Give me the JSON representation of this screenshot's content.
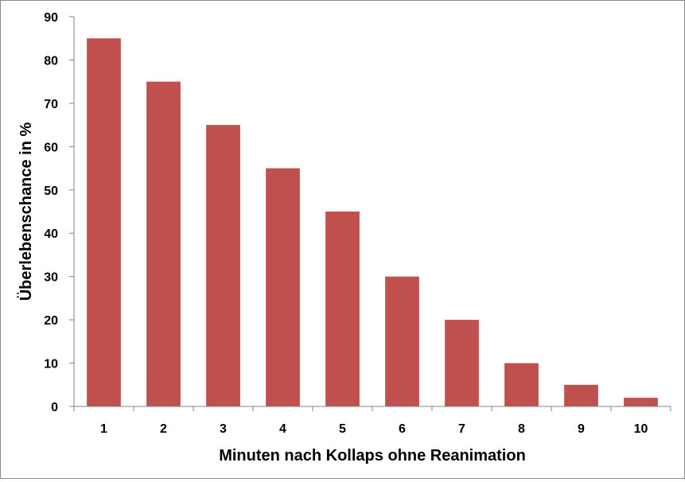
{
  "chart_data": {
    "type": "bar",
    "categories": [
      "1",
      "2",
      "3",
      "4",
      "5",
      "6",
      "7",
      "8",
      "9",
      "10"
    ],
    "values": [
      85,
      75,
      65,
      55,
      45,
      30,
      20,
      10,
      5,
      2
    ],
    "title": "",
    "xlabel": "Minuten nach Kollaps ohne Reanimation",
    "ylabel": "Überlebenschance in %",
    "ylim": [
      0,
      90
    ],
    "yticks": [
      0,
      10,
      20,
      30,
      40,
      50,
      60,
      70,
      80,
      90
    ],
    "grid": false,
    "legend": "none",
    "bar_color": "#c0504d"
  }
}
